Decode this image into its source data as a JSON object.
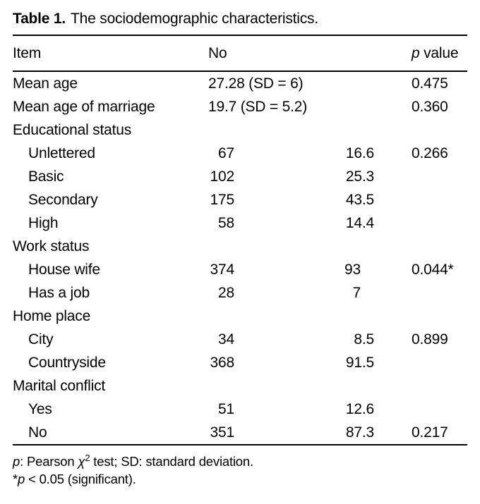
{
  "title": {
    "label": "Table 1.",
    "text": "The sociodemographic characteristics."
  },
  "columns": {
    "item": "Item",
    "no": "No",
    "p_symbol": "p",
    "p_rest": " value"
  },
  "rows": [
    {
      "item": "Mean age",
      "sub": false,
      "no": "27.28 (SD = 6)",
      "pct": "",
      "p": "0.475"
    },
    {
      "item": "Mean age of marriage",
      "sub": false,
      "no": "19.7 (SD = 5.2)",
      "pct": "",
      "p": "0.360"
    },
    {
      "item": "Educational status",
      "sub": false,
      "no": "",
      "pct": "",
      "p": ""
    },
    {
      "item": "Unlettered",
      "sub": true,
      "no": "67",
      "pct": "16.6",
      "p": "0.266"
    },
    {
      "item": "Basic",
      "sub": true,
      "no": "102",
      "pct": "25.3",
      "p": ""
    },
    {
      "item": "Secondary",
      "sub": true,
      "no": "175",
      "pct": "43.5",
      "p": ""
    },
    {
      "item": "High",
      "sub": true,
      "no": "58",
      "pct": "14.4",
      "p": ""
    },
    {
      "item": "Work status",
      "sub": false,
      "no": "",
      "pct": "",
      "p": ""
    },
    {
      "item": "House wife",
      "sub": true,
      "no": "374",
      "pct": "93",
      "p": "0.044*"
    },
    {
      "item": "Has a job",
      "sub": true,
      "no": "28",
      "pct": "7",
      "p": ""
    },
    {
      "item": "Home place",
      "sub": false,
      "no": "",
      "pct": "",
      "p": ""
    },
    {
      "item": "City",
      "sub": true,
      "no": "34",
      "pct": "8.5",
      "p": "0.899"
    },
    {
      "item": "Countryside",
      "sub": true,
      "no": "368",
      "pct": "91.5",
      "p": ""
    },
    {
      "item": "Marital conflict",
      "sub": false,
      "no": "",
      "pct": "",
      "p": ""
    },
    {
      "item": "Yes",
      "sub": true,
      "no": "51",
      "pct": "12.6",
      "p": ""
    },
    {
      "item": "No",
      "sub": true,
      "no": "351",
      "pct": "87.3",
      "p": "0.217"
    }
  ],
  "footnotes": {
    "line1": {
      "p_symbol": "p",
      "part_a": ": Pearson ",
      "chi": "χ",
      "sup": "2",
      "part_b": " test; SD: standard deviation."
    },
    "line2": {
      "star": "*",
      "p_symbol": "p",
      "rest": " < 0.05 (significant)."
    }
  },
  "colors": {
    "text": "#000000",
    "background": "#ffffff",
    "rule": "#000000"
  }
}
